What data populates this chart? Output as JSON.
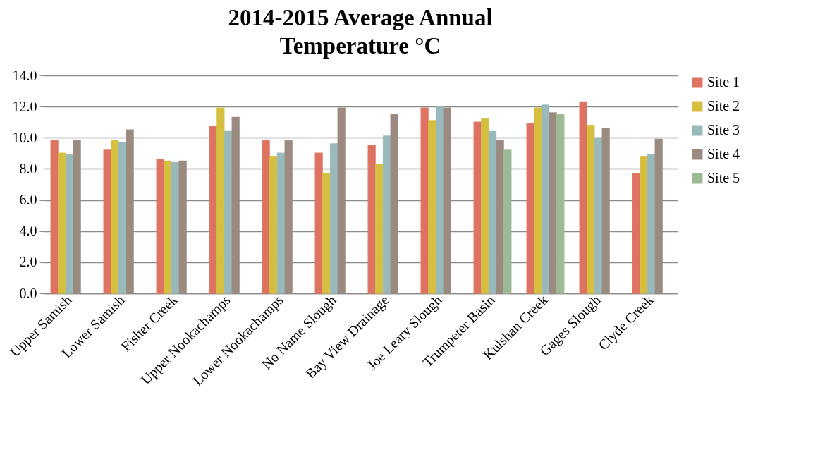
{
  "chart_data": {
    "type": "bar",
    "title": "2014-2015 Average Annual\nTemperature °C",
    "categories": [
      "Upper Samish",
      "Lower Samish",
      "Fisher Creek",
      "Upper Nookachamps",
      "Lower Nookachamps",
      "No Name Slough",
      "Bay View Drainage",
      "Joe Leary Slough",
      "Trumpeter Basin",
      "Kulshan Creek",
      "Gages Slough",
      "Clyde Creek"
    ],
    "series": [
      {
        "name": "Site 1",
        "color": "#dd7360",
        "values": [
          9.8,
          9.2,
          8.6,
          10.7,
          9.8,
          9.0,
          9.5,
          11.9,
          11.0,
          10.9,
          12.3,
          7.7
        ]
      },
      {
        "name": "Site 2",
        "color": "#d6bf3f",
        "values": [
          9.0,
          9.8,
          8.5,
          11.9,
          8.8,
          7.7,
          8.3,
          11.1,
          11.2,
          11.9,
          10.8,
          8.8
        ]
      },
      {
        "name": "Site 3",
        "color": "#9ab9bb",
        "values": [
          8.9,
          9.7,
          8.4,
          10.4,
          9.0,
          9.6,
          10.1,
          12.0,
          10.4,
          12.1,
          10.0,
          8.9
        ]
      },
      {
        "name": "Site 4",
        "color": "#9a8a80",
        "values": [
          9.8,
          10.5,
          8.5,
          11.3,
          9.8,
          11.9,
          11.5,
          11.9,
          9.8,
          11.6,
          10.6,
          9.9
        ]
      },
      {
        "name": "Site 5",
        "color": "#9dba96",
        "values": [
          null,
          null,
          null,
          null,
          null,
          null,
          null,
          null,
          9.2,
          11.5,
          null,
          null
        ]
      }
    ],
    "ylim": [
      0,
      14
    ],
    "yticks": [
      {
        "value": 0,
        "label": "0.0"
      },
      {
        "value": 2,
        "label": "2.0"
      },
      {
        "value": 4,
        "label": "4.0"
      },
      {
        "value": 6,
        "label": "6.0"
      },
      {
        "value": 8,
        "label": "8.0"
      },
      {
        "value": 10,
        "label": "10.0"
      },
      {
        "value": 12,
        "label": "12.0"
      },
      {
        "value": 14,
        "label": "14.0"
      }
    ],
    "grid": "y",
    "legend": "right"
  }
}
